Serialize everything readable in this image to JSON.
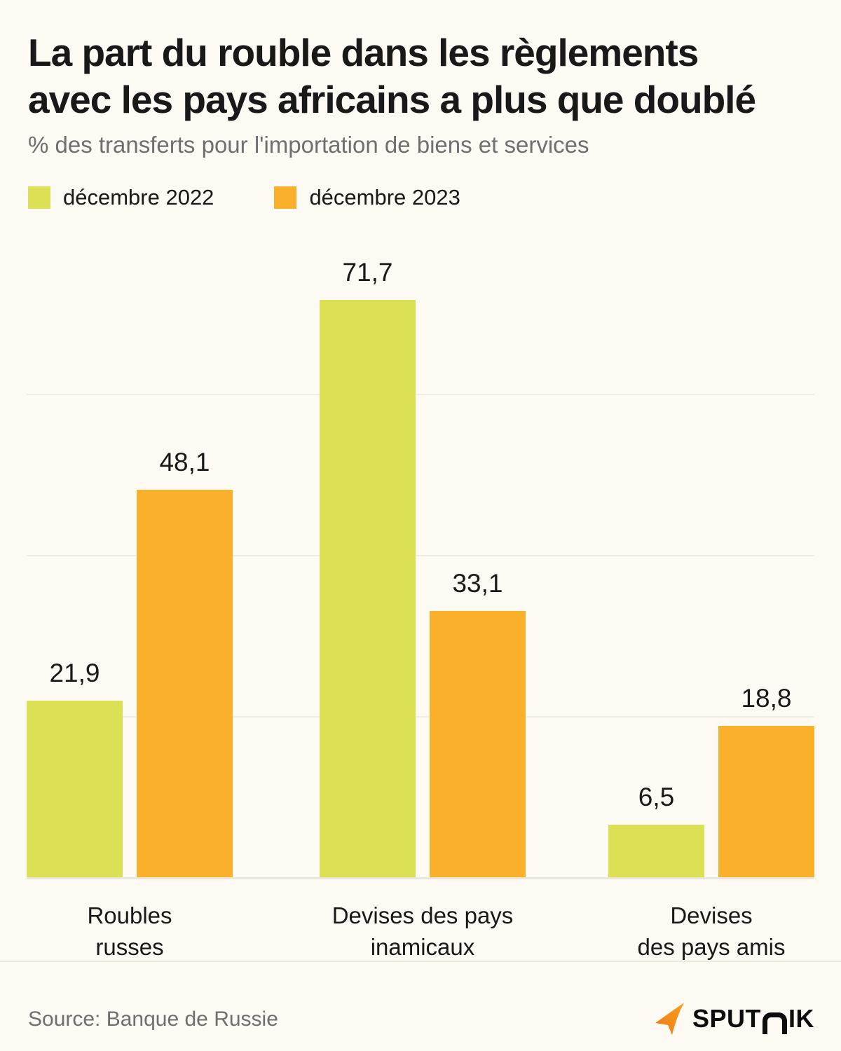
{
  "page": {
    "background": "#FDF9F3",
    "title_line1": "La part du rouble dans les règlements",
    "title_line2": "avec les pays africains a plus que doublé",
    "subtitle": "% des transferts pour l'importation de biens et services"
  },
  "legend": {
    "items": [
      {
        "label": "décembre 2022",
        "color": "#DCE055"
      },
      {
        "label": "décembre 2023",
        "color": "#FBB02C"
      }
    ]
  },
  "chart_data": {
    "type": "bar",
    "title": "La part du rouble dans les règlements avec les pays africains a plus que doublé",
    "xlabel": "",
    "ylabel": "% des transferts pour l'importation de biens et services",
    "categories": [
      "Roubles russes",
      "Devises des pays inamicaux",
      "Devises des pays amis"
    ],
    "category_label_lines": [
      [
        "Roubles",
        "russes"
      ],
      [
        "Devises des pays",
        "inamicaux"
      ],
      [
        "Devises",
        "des pays amis"
      ]
    ],
    "series": [
      {
        "name": "décembre 2022",
        "color": "#DCE055",
        "values": [
          21.9,
          71.7,
          6.5
        ]
      },
      {
        "name": "décembre 2023",
        "color": "#FBB02C",
        "values": [
          48.1,
          33.1,
          18.8
        ]
      }
    ],
    "decimal_separator": ",",
    "ylim": [
      0,
      80
    ],
    "grid": true,
    "gridlines": [
      20,
      40,
      60
    ],
    "gridline_color": "#F0EBE3",
    "legend_position": "top-left",
    "value_labels_shown": true
  },
  "footer": {
    "source": "Source: Banque de Russie",
    "logo": {
      "part1": "SPUT",
      "part2": "IK",
      "arrow_color_top": "#F9A11C",
      "arrow_color_bottom": "#ED7817"
    }
  }
}
